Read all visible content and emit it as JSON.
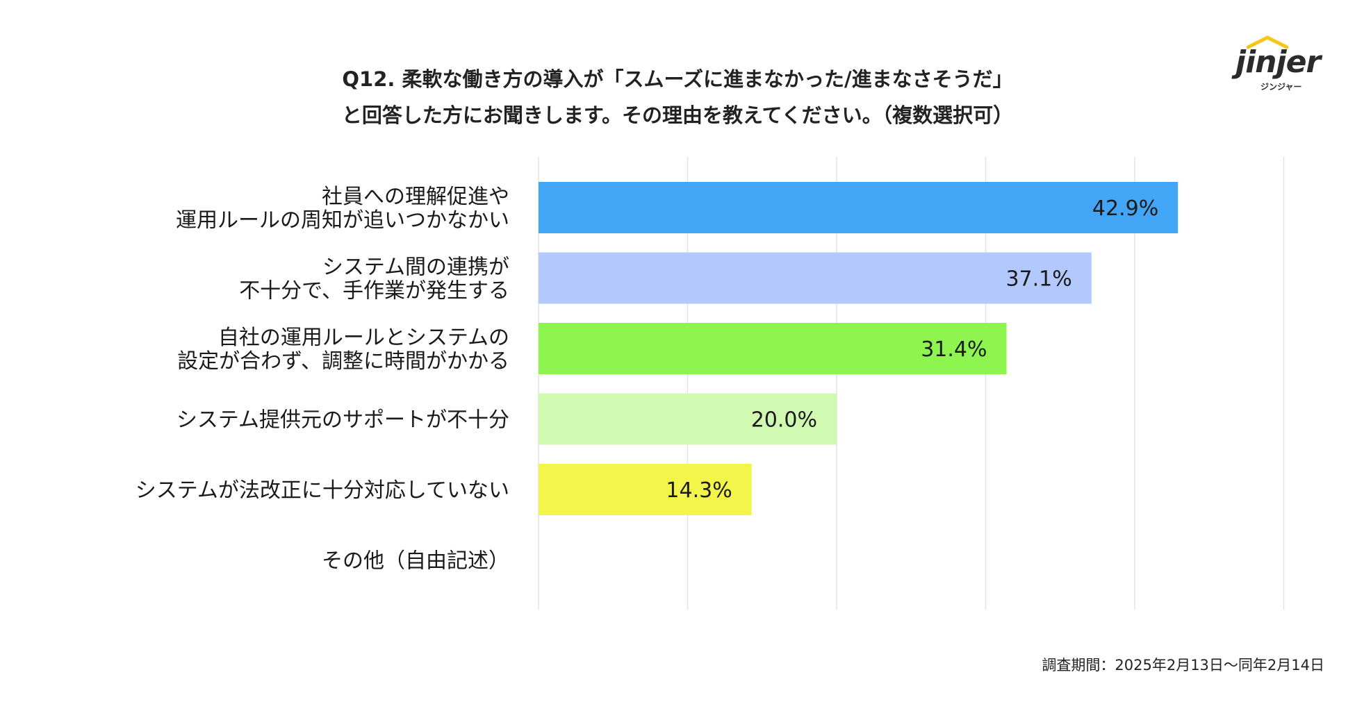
{
  "header": {
    "title_line1": "Q12. 柔軟な働き方の導入が「スムーズに進まなかった/進まなさそうだ」",
    "title_line2": "と回答した方にお聞きします。その理由を教えてください。（複数選択可）"
  },
  "logo": {
    "wordmark": "jinjer",
    "kana": "ジンジャー",
    "color": "#f5c518"
  },
  "footer": {
    "survey_period": "調査期間：2025年2月13日〜同年2月14日"
  },
  "chart_data": {
    "type": "bar",
    "orientation": "horizontal",
    "title": "Q12. 柔軟な働き方の導入が「スムーズに進まなかった/進まなさそうだ」と回答した方にお聞きします。その理由を教えてください。（複数選択可）",
    "categories": [
      [
        "社員への理解促進や",
        "運用ルールの周知が追いつかなかい"
      ],
      [
        "システム間の連携が",
        "不十分で、手作業が発生する"
      ],
      [
        "自社の運用ルールとシステムの",
        "設定が合わず、調整に時間がかかる"
      ],
      [
        "システム提供元のサポートが不十分"
      ],
      [
        "システムが法改正に十分対応していない"
      ],
      [
        "その他（自由記述）"
      ]
    ],
    "values": [
      42.9,
      37.1,
      31.4,
      20.0,
      14.3,
      0
    ],
    "labels": [
      "42.9%",
      "37.1%",
      "31.4%",
      "20.0%",
      "14.3%",
      ""
    ],
    "colors": [
      "#42a5f5",
      "#b3c9fd",
      "#8ef550",
      "#d0f9b2",
      "#f4f54a",
      "#ffffff"
    ],
    "xlim": [
      0,
      50
    ],
    "grid": true,
    "gridline_values": [
      0,
      10,
      20,
      30,
      40,
      50
    ],
    "unit": "%"
  }
}
